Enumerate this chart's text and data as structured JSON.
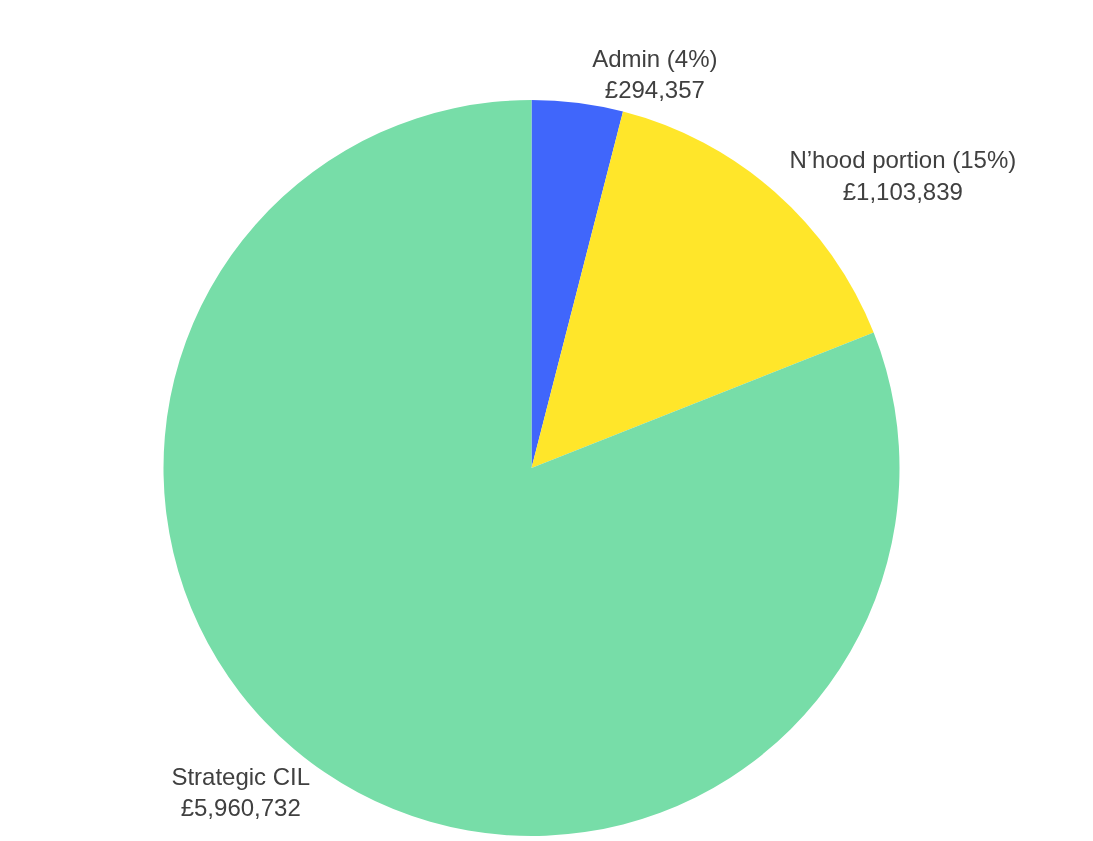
{
  "chart_data": {
    "type": "pie",
    "categories": [
      "Admin (4%)",
      "N’hood portion (15%)",
      "Strategic CIL"
    ],
    "values": [
      294357,
      1103839,
      5960732
    ],
    "value_labels": [
      "£294,357",
      "£1,103,839",
      "£5,960,732"
    ],
    "colors": [
      "#4066fb",
      "#ffe62a",
      "#77dda8"
    ],
    "legend": false
  }
}
